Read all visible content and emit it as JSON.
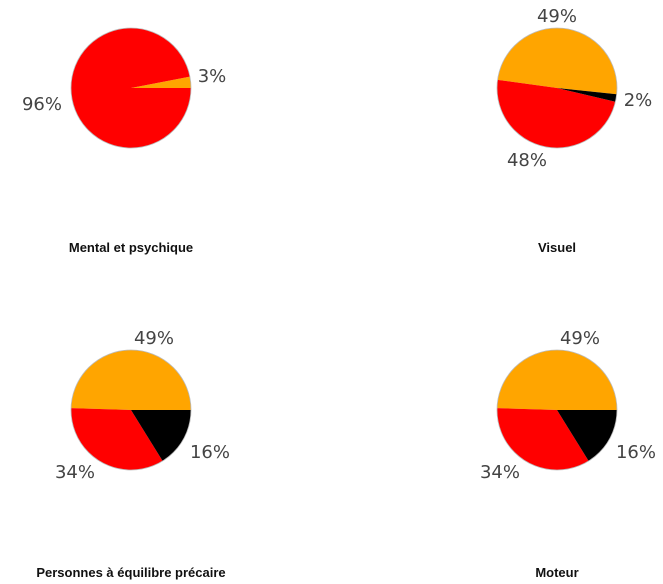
{
  "colors": {
    "orange": "#ffa500",
    "red": "#ff0000",
    "black": "#000000",
    "border": "#bbbbbb"
  },
  "chart_data": [
    {
      "type": "pie",
      "title": "Mental et psychique",
      "slices": [
        {
          "value": 3,
          "label": "3%",
          "color": "#ffa500"
        },
        {
          "value": 96,
          "label": "96%",
          "color": "#ff0000"
        }
      ]
    },
    {
      "type": "pie",
      "title": "Visuel",
      "slices": [
        {
          "value": 49,
          "label": "49%",
          "color": "#ffa500"
        },
        {
          "value": 48,
          "label": "48%",
          "color": "#ff0000"
        },
        {
          "value": 2,
          "label": "2%",
          "color": "#000000"
        }
      ]
    },
    {
      "type": "pie",
      "title": "Personnes à équilibre précaire",
      "slices": [
        {
          "value": 49,
          "label": "49%",
          "color": "#ffa500"
        },
        {
          "value": 34,
          "label": "34%",
          "color": "#ff0000"
        },
        {
          "value": 16,
          "label": "16%",
          "color": "#000000"
        }
      ]
    },
    {
      "type": "pie",
      "title": "Moteur",
      "slices": [
        {
          "value": 49,
          "label": "49%",
          "color": "#ffa500"
        },
        {
          "value": 34,
          "label": "34%",
          "color": "#ff0000"
        },
        {
          "value": 16,
          "label": "16%",
          "color": "#000000"
        }
      ]
    }
  ]
}
